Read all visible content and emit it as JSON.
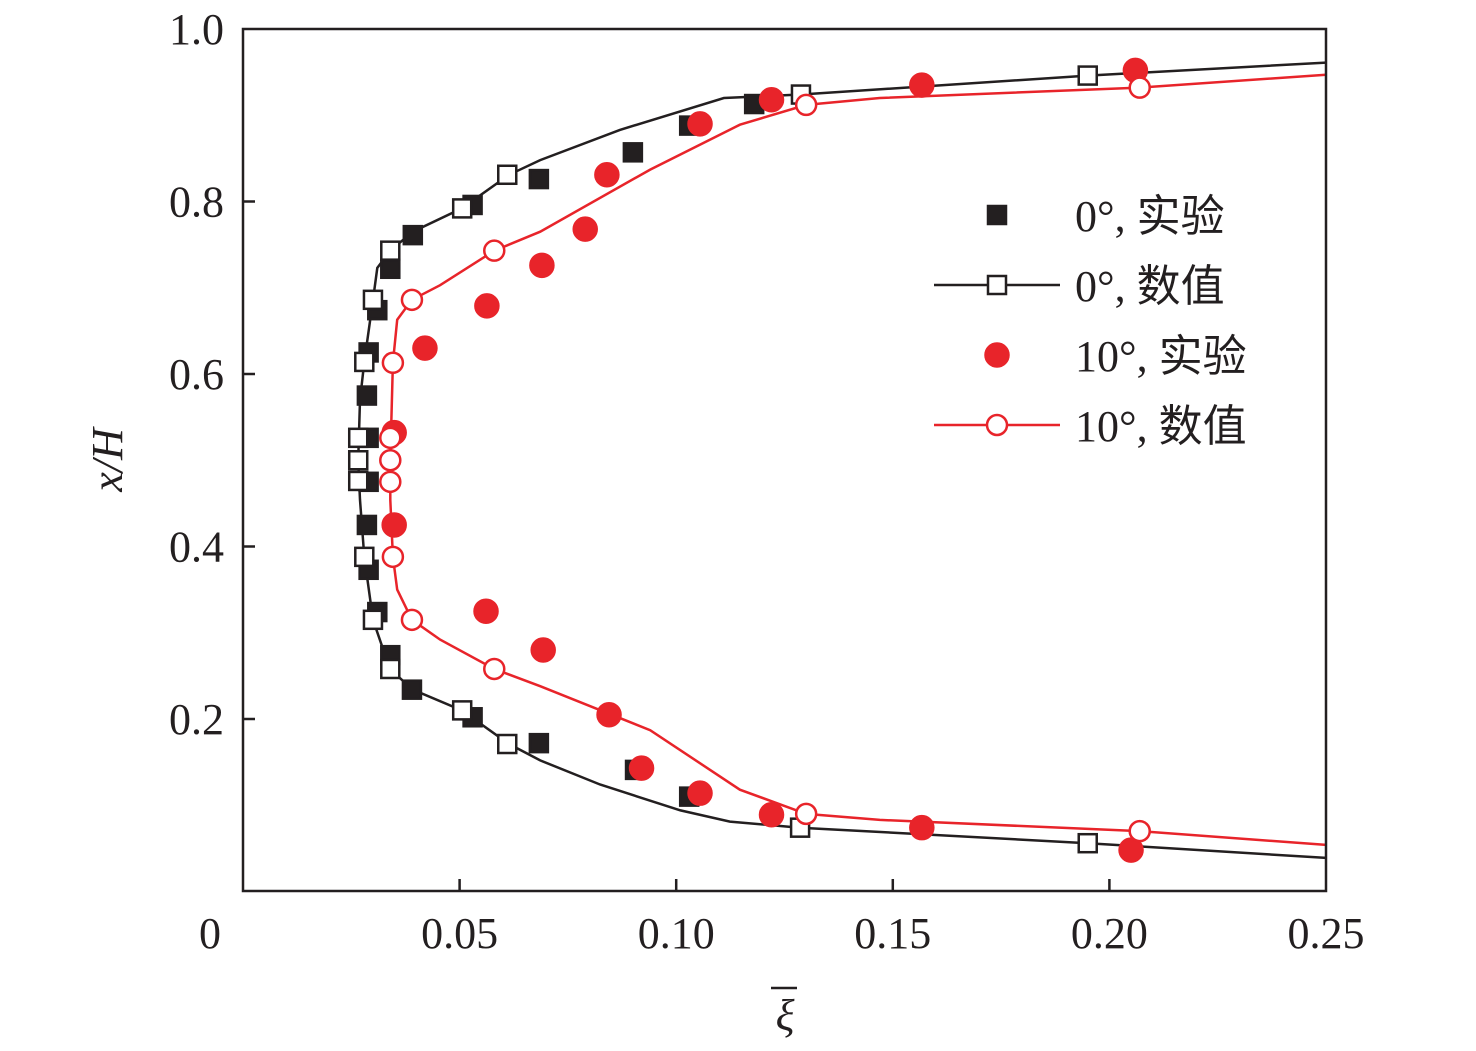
{
  "chart_data": {
    "type": "scatter",
    "title": "",
    "xlabel": "ξ̄",
    "ylabel": "x/H",
    "xlim": [
      0,
      0.25
    ],
    "ylim": [
      0,
      1.0
    ],
    "x_ticks": [
      0,
      0.05,
      0.1,
      0.15,
      0.2,
      0.25
    ],
    "x_tick_labels": [
      "0",
      "0.05",
      "0.10",
      "0.15",
      "0.20",
      "0.25"
    ],
    "y_ticks": [
      0.2,
      0.4,
      0.6,
      0.8,
      1.0
    ],
    "y_tick_labels": [
      "0.2",
      "0.4",
      "0.6",
      "0.8",
      "1.0"
    ],
    "grid": false,
    "legend_position": "right",
    "colors": {
      "black": "#231f20",
      "red": "#e8242a"
    },
    "series": [
      {
        "name": "0°, 实验",
        "style": "filled-square",
        "color": "#231f20",
        "points": [
          [
            0.0392,
            0.761
          ],
          [
            0.034,
            0.722
          ],
          [
            0.031,
            0.674
          ],
          [
            0.029,
            0.625
          ],
          [
            0.0286,
            0.575
          ],
          [
            0.029,
            0.526
          ],
          [
            0.029,
            0.475
          ],
          [
            0.0286,
            0.425
          ],
          [
            0.029,
            0.373
          ],
          [
            0.031,
            0.324
          ],
          [
            0.034,
            0.274
          ],
          [
            0.039,
            0.234
          ],
          [
            0.053,
            0.202
          ],
          [
            0.0683,
            0.172
          ],
          [
            0.0905,
            0.141
          ],
          [
            0.103,
            0.11
          ],
          [
            0.053,
            0.796
          ],
          [
            0.0683,
            0.826
          ],
          [
            0.09,
            0.857
          ],
          [
            0.103,
            0.888
          ],
          [
            0.118,
            0.913
          ]
        ]
      },
      {
        "name": "0°, 数值",
        "style": "open-square-line",
        "color": "#231f20",
        "points": [
          [
            0.034,
            0.743
          ],
          [
            0.03,
            0.686
          ],
          [
            0.028,
            0.614
          ],
          [
            0.0266,
            0.526
          ],
          [
            0.0266,
            0.5
          ],
          [
            0.0266,
            0.476
          ],
          [
            0.028,
            0.388
          ],
          [
            0.03,
            0.315
          ],
          [
            0.034,
            0.258
          ],
          [
            0.0506,
            0.21
          ],
          [
            0.061,
            0.171
          ],
          [
            0.1286,
            0.074
          ],
          [
            0.195,
            0.056
          ],
          [
            0.0506,
            0.792
          ],
          [
            0.061,
            0.831
          ],
          [
            0.1288,
            0.924
          ],
          [
            0.195,
            0.946
          ]
        ],
        "line": [
          [
            0.25,
            0.039
          ],
          [
            0.195,
            0.056
          ],
          [
            0.1286,
            0.074
          ],
          [
            0.1124,
            0.081
          ],
          [
            0.101,
            0.094
          ],
          [
            0.0824,
            0.124
          ],
          [
            0.0686,
            0.152
          ],
          [
            0.0614,
            0.171
          ],
          [
            0.0505,
            0.21
          ],
          [
            0.0392,
            0.234
          ],
          [
            0.0339,
            0.258
          ],
          [
            0.03,
            0.315
          ],
          [
            0.028,
            0.388
          ],
          [
            0.027,
            0.454
          ],
          [
            0.0266,
            0.5
          ],
          [
            0.027,
            0.57
          ],
          [
            0.028,
            0.614
          ],
          [
            0.03,
            0.686
          ],
          [
            0.031,
            0.723
          ],
          [
            0.034,
            0.743
          ],
          [
            0.0392,
            0.765
          ],
          [
            0.0505,
            0.792
          ],
          [
            0.0614,
            0.831
          ],
          [
            0.0686,
            0.848
          ],
          [
            0.087,
            0.883
          ],
          [
            0.111,
            0.92
          ],
          [
            0.1288,
            0.924
          ],
          [
            0.195,
            0.946
          ],
          [
            0.25,
            0.961
          ]
        ]
      },
      {
        "name": "10°, 实验",
        "style": "filled-circle",
        "color": "#e8242a",
        "points": [
          [
            0.122,
            0.918
          ],
          [
            0.1055,
            0.89
          ],
          [
            0.084,
            0.831
          ],
          [
            0.079,
            0.768
          ],
          [
            0.069,
            0.726
          ],
          [
            0.0563,
            0.679
          ],
          [
            0.042,
            0.63
          ],
          [
            0.0349,
            0.532
          ],
          [
            0.0349,
            0.425
          ],
          [
            0.0561,
            0.325
          ],
          [
            0.0693,
            0.28
          ],
          [
            0.0845,
            0.205
          ],
          [
            0.092,
            0.143
          ],
          [
            0.1055,
            0.114
          ],
          [
            0.122,
            0.089
          ],
          [
            0.1567,
            0.074
          ],
          [
            0.205,
            0.048
          ],
          [
            0.1567,
            0.935
          ],
          [
            0.206,
            0.952
          ]
        ]
      },
      {
        "name": "10°, 数值",
        "style": "open-circle-line",
        "color": "#e8242a",
        "points": [
          [
            0.13,
            0.912
          ],
          [
            0.058,
            0.743
          ],
          [
            0.039,
            0.686
          ],
          [
            0.0346,
            0.613
          ],
          [
            0.034,
            0.526
          ],
          [
            0.034,
            0.5
          ],
          [
            0.034,
            0.475
          ],
          [
            0.0346,
            0.388
          ],
          [
            0.039,
            0.315
          ],
          [
            0.058,
            0.258
          ],
          [
            0.13,
            0.09
          ],
          [
            0.207,
            0.07
          ],
          [
            0.207,
            0.932
          ]
        ],
        "line": [
          [
            0.25,
            0.054
          ],
          [
            0.207,
            0.07
          ],
          [
            0.147,
            0.083
          ],
          [
            0.13,
            0.09
          ],
          [
            0.1147,
            0.118
          ],
          [
            0.094,
            0.187
          ],
          [
            0.0686,
            0.238
          ],
          [
            0.058,
            0.258
          ],
          [
            0.0455,
            0.292
          ],
          [
            0.039,
            0.315
          ],
          [
            0.0356,
            0.35
          ],
          [
            0.0346,
            0.388
          ],
          [
            0.034,
            0.454
          ],
          [
            0.034,
            0.5
          ],
          [
            0.0346,
            0.613
          ],
          [
            0.0356,
            0.663
          ],
          [
            0.039,
            0.686
          ],
          [
            0.0455,
            0.703
          ],
          [
            0.058,
            0.743
          ],
          [
            0.0686,
            0.765
          ],
          [
            0.094,
            0.837
          ],
          [
            0.1147,
            0.889
          ],
          [
            0.13,
            0.912
          ],
          [
            0.147,
            0.92
          ],
          [
            0.207,
            0.932
          ],
          [
            0.25,
            0.947
          ]
        ]
      }
    ]
  }
}
